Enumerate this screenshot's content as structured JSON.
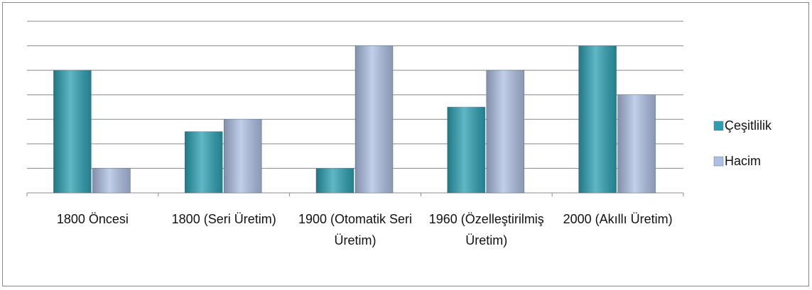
{
  "chart_data": {
    "type": "bar",
    "categories": [
      "1800 Öncesi",
      "1800 (Seri Üretim)",
      "1900 (Otomatik Seri Üretim)",
      "1960 (Özelleştirilmiş Üretim)",
      "2000 (Akıllı Üretim)"
    ],
    "series": [
      {
        "name": "Çeşitlilik",
        "color": "#2b9fb1",
        "values": [
          5,
          2.5,
          1,
          3.5,
          6
        ]
      },
      {
        "name": "Hacim",
        "color": "#aebfe3",
        "values": [
          1,
          3,
          6,
          5,
          4
        ]
      }
    ],
    "ylim": [
      0,
      7
    ],
    "yticks": [
      0,
      1,
      2,
      3,
      4,
      5,
      6,
      7
    ],
    "grid": true,
    "legend": "right"
  }
}
